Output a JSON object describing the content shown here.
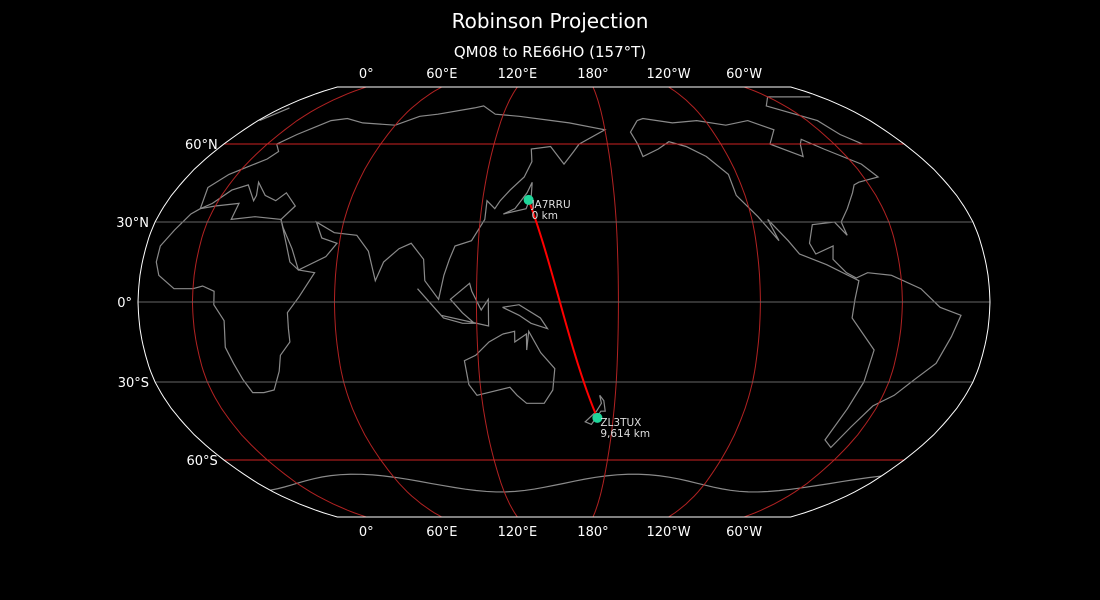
{
  "title": "Robinson Projection",
  "subtitle": "QM08 to RE66HO (157°T)",
  "map": {
    "projection": "Robinson",
    "central_longitude": 157,
    "longitude_labels": [
      "0°",
      "60°E",
      "120°E",
      "180°",
      "120°W",
      "60°W"
    ],
    "longitudes": [
      0,
      60,
      120,
      180,
      -120,
      -60
    ],
    "latitude_labels": [
      "60°N",
      "30°N",
      "0°",
      "30°S",
      "60°S"
    ],
    "latitudes": [
      60,
      30,
      0,
      -30,
      -60
    ],
    "colors": {
      "background": "#000000",
      "coastline": "#8a8a8a",
      "meridian": "#b22222",
      "parallel_major": "#cc2222",
      "parallel_minor": "#666666",
      "path": "#ff0000",
      "marker": "#1fd69a"
    }
  },
  "stations": [
    {
      "call": "JA7RRU",
      "distance": "0 km",
      "lat": 38.3,
      "lon": 140.9
    },
    {
      "call": "ZL3TUX",
      "distance": "9,614 km",
      "lat": -43.5,
      "lon": 172.6
    }
  ]
}
